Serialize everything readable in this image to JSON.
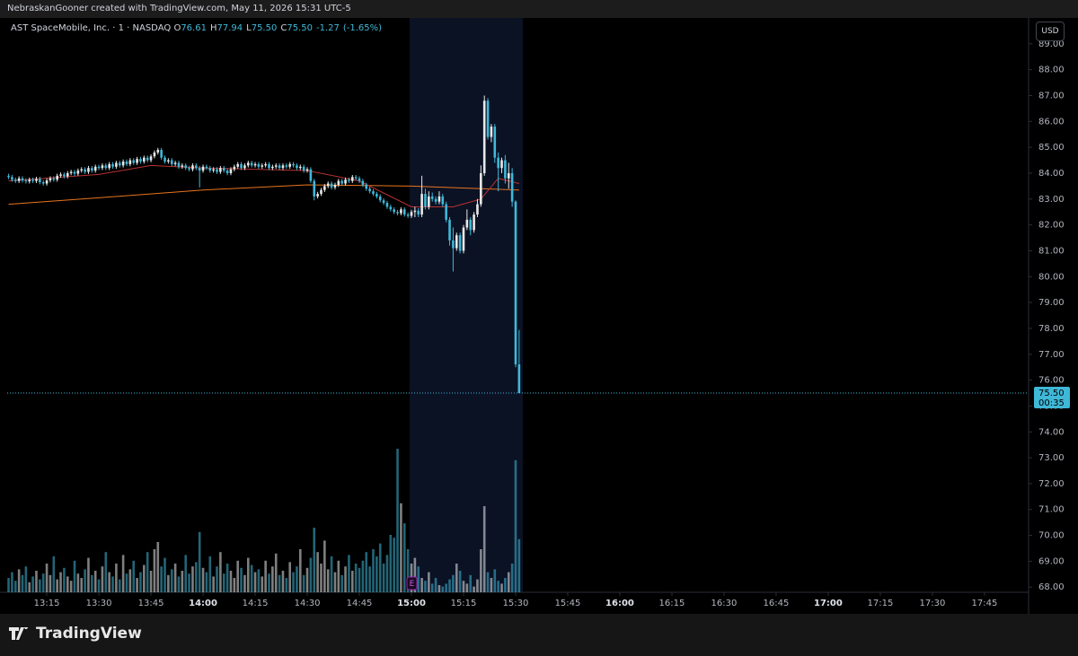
{
  "attribution": "NebraskanGooner created with TradingView.com, May 11, 2026 15:31 UTC-5",
  "logo": "TradingView",
  "currency": "USD",
  "chart_data": {
    "type": "candlestick",
    "title": "AST SpaceMobile, Inc. · 1 · NASDAQ",
    "ohlc_labels": [
      "O",
      "H",
      "L",
      "C"
    ],
    "legend_values": [
      76.61,
      77.94,
      75.5,
      75.5
    ],
    "legend_value_labels": [
      "76.61",
      "77.94",
      "75.50",
      "75.50"
    ],
    "change": -1.27,
    "change_percent": {
      "value": -1.65,
      "label": "(-1.65%)"
    },
    "last_price": {
      "value": 75.5,
      "label": "75.50"
    },
    "countdown": "00:35",
    "up_color": "#e8e8e8",
    "down_color": "#3fb8d8",
    "x": [
      784,
      785,
      786,
      787,
      788,
      789,
      790,
      791,
      792,
      793,
      794,
      795,
      796,
      797,
      798,
      799,
      800,
      801,
      802,
      803,
      804,
      805,
      806,
      807,
      808,
      809,
      810,
      811,
      812,
      813,
      814,
      815,
      816,
      817,
      818,
      819,
      820,
      821,
      822,
      823,
      824,
      825,
      826,
      827,
      828,
      829,
      830,
      831,
      832,
      833,
      834,
      835,
      836,
      837,
      838,
      839,
      840,
      841,
      842,
      843,
      844,
      845,
      846,
      847,
      848,
      849,
      850,
      851,
      852,
      853,
      854,
      855,
      856,
      857,
      858,
      859,
      860,
      861,
      862,
      863,
      864,
      865,
      866,
      867,
      868,
      869,
      870,
      871,
      872,
      873,
      874,
      875,
      876,
      877,
      878,
      879,
      880,
      881,
      882,
      883,
      884,
      885,
      886,
      887,
      888,
      889,
      890,
      891,
      892,
      893,
      894,
      895,
      896,
      897,
      898,
      899,
      900,
      901,
      902,
      903,
      904,
      905,
      906,
      907,
      908,
      909,
      910,
      911,
      912,
      913,
      914,
      915,
      916,
      917,
      918,
      919,
      920,
      921,
      922,
      923,
      924,
      925,
      926,
      927,
      928,
      929,
      930,
      931
    ],
    "open": [
      83.9,
      83.85,
      83.75,
      83.7,
      83.8,
      83.72,
      83.68,
      83.75,
      83.7,
      83.78,
      83.65,
      83.6,
      83.72,
      83.8,
      83.75,
      83.9,
      83.95,
      83.88,
      84.0,
      84.05,
      83.98,
      84.1,
      84.15,
      84.05,
      84.2,
      84.1,
      84.25,
      84.2,
      84.3,
      84.2,
      84.35,
      84.25,
      84.4,
      84.3,
      84.45,
      84.35,
      84.5,
      84.4,
      84.55,
      84.45,
      84.6,
      84.5,
      84.65,
      84.8,
      84.9,
      84.6,
      84.45,
      84.5,
      84.35,
      84.4,
      84.25,
      84.3,
      84.2,
      84.15,
      84.3,
      84.2,
      84.1,
      84.25,
      84.2,
      84.1,
      84.15,
      84.05,
      84.2,
      84.1,
      84.0,
      84.15,
      84.25,
      84.35,
      84.2,
      84.3,
      84.4,
      84.3,
      84.35,
      84.25,
      84.3,
      84.35,
      84.2,
      84.25,
      84.3,
      84.2,
      84.3,
      84.25,
      84.35,
      84.3,
      84.2,
      84.25,
      84.1,
      84.15,
      83.7,
      83.1,
      83.2,
      83.35,
      83.5,
      83.6,
      83.45,
      83.55,
      83.7,
      83.6,
      83.75,
      83.7,
      83.85,
      83.8,
      83.7,
      83.55,
      83.4,
      83.3,
      83.2,
      83.1,
      82.95,
      82.85,
      82.7,
      82.6,
      82.5,
      82.45,
      82.6,
      82.4,
      82.35,
      82.5,
      82.55,
      82.4,
      83.2,
      82.7,
      83.1,
      83.0,
      82.9,
      83.1,
      82.8,
      82.2,
      81.4,
      81.1,
      81.6,
      81.0,
      81.9,
      82.2,
      81.8,
      82.4,
      82.8,
      84.0,
      86.8,
      85.4,
      85.8,
      84.6,
      84.2,
      84.5,
      83.8,
      84.0,
      82.9,
      76.61
    ],
    "high": [
      83.98,
      83.93,
      83.83,
      83.88,
      83.88,
      83.8,
      83.83,
      83.83,
      83.86,
      83.86,
      83.73,
      83.8,
      83.88,
      83.88,
      83.98,
      84.03,
      84.03,
      84.08,
      84.13,
      84.13,
      84.18,
      84.23,
      84.23,
      84.28,
      84.28,
      84.33,
      84.33,
      84.38,
      84.38,
      84.43,
      84.43,
      84.48,
      84.48,
      84.53,
      84.53,
      84.58,
      84.58,
      84.63,
      84.63,
      84.68,
      84.68,
      84.73,
      84.88,
      84.98,
      84.98,
      84.68,
      84.58,
      84.58,
      84.48,
      84.48,
      84.38,
      84.38,
      84.28,
      84.38,
      84.38,
      84.28,
      84.33,
      84.33,
      84.28,
      84.23,
      84.23,
      84.28,
      84.28,
      84.18,
      84.23,
      84.33,
      84.43,
      84.43,
      84.38,
      84.48,
      84.48,
      84.43,
      84.43,
      84.38,
      84.43,
      84.43,
      84.33,
      84.38,
      84.38,
      84.38,
      84.38,
      84.43,
      84.43,
      84.38,
      84.33,
      84.33,
      84.23,
      84.23,
      83.78,
      83.28,
      83.43,
      83.58,
      83.68,
      83.68,
      83.63,
      83.78,
      83.78,
      83.83,
      83.83,
      83.93,
      83.93,
      83.88,
      83.78,
      83.63,
      83.48,
      83.38,
      83.28,
      83.18,
      83.03,
      82.93,
      82.78,
      82.68,
      82.58,
      82.68,
      82.68,
      82.48,
      82.58,
      82.7,
      82.65,
      83.9,
      83.4,
      83.3,
      83.25,
      83.1,
      83.3,
      83.2,
      82.9,
      82.3,
      81.9,
      81.7,
      81.7,
      82.0,
      82.6,
      82.3,
      82.5,
      83.0,
      84.3,
      87.0,
      86.9,
      85.9,
      85.9,
      84.8,
      84.6,
      84.7,
      84.4,
      84.2,
      82.95,
      77.94
    ],
    "low": [
      83.77,
      83.67,
      83.62,
      83.62,
      83.64,
      83.6,
      83.6,
      83.62,
      83.62,
      83.57,
      83.52,
      83.52,
      83.64,
      83.67,
      83.67,
      83.82,
      83.8,
      83.8,
      83.92,
      83.9,
      83.9,
      84.02,
      83.97,
      83.97,
      84.02,
      84.02,
      84.12,
      84.12,
      84.12,
      84.12,
      84.17,
      84.17,
      84.22,
      84.22,
      84.27,
      84.27,
      84.32,
      84.32,
      84.37,
      84.37,
      84.42,
      84.42,
      84.57,
      84.72,
      84.52,
      84.37,
      84.37,
      84.27,
      84.27,
      84.17,
      84.17,
      84.12,
      84.07,
      84.07,
      84.12,
      83.45,
      84.02,
      84.12,
      84.02,
      84.02,
      83.97,
      83.97,
      84.02,
      83.92,
      83.92,
      84.07,
      84.17,
      84.12,
      84.12,
      84.22,
      84.22,
      84.22,
      84.17,
      84.17,
      84.22,
      84.12,
      84.12,
      84.17,
      84.12,
      84.12,
      84.17,
      84.17,
      84.22,
      84.12,
      84.12,
      84.02,
      84.02,
      83.62,
      82.95,
      83.02,
      83.12,
      83.27,
      83.42,
      83.37,
      83.37,
      83.47,
      83.52,
      83.52,
      83.62,
      83.62,
      83.72,
      83.62,
      83.47,
      83.32,
      83.22,
      83.12,
      83.02,
      82.87,
      82.77,
      82.62,
      82.52,
      82.42,
      82.37,
      82.37,
      82.32,
      82.27,
      82.27,
      82.3,
      82.3,
      82.3,
      82.6,
      82.6,
      82.9,
      82.8,
      82.8,
      82.7,
      82.1,
      81.2,
      80.2,
      81.0,
      80.9,
      80.9,
      81.8,
      81.6,
      81.7,
      82.3,
      82.7,
      83.9,
      85.3,
      85.2,
      84.4,
      83.3,
      84.0,
      83.6,
      83.4,
      82.7,
      76.5,
      75.5
    ],
    "close": [
      83.85,
      83.75,
      83.7,
      83.8,
      83.72,
      83.68,
      83.75,
      83.7,
      83.78,
      83.65,
      83.6,
      83.72,
      83.8,
      83.75,
      83.9,
      83.95,
      83.88,
      84.0,
      84.05,
      83.98,
      84.1,
      84.15,
      84.05,
      84.2,
      84.1,
      84.25,
      84.2,
      84.3,
      84.2,
      84.35,
      84.25,
      84.4,
      84.3,
      84.45,
      84.35,
      84.5,
      84.4,
      84.55,
      84.45,
      84.6,
      84.5,
      84.65,
      84.8,
      84.9,
      84.6,
      84.45,
      84.5,
      84.35,
      84.4,
      84.25,
      84.3,
      84.2,
      84.15,
      84.3,
      84.2,
      84.1,
      84.25,
      84.2,
      84.1,
      84.15,
      84.05,
      84.2,
      84.1,
      84.0,
      84.15,
      84.25,
      84.35,
      84.2,
      84.3,
      84.4,
      84.3,
      84.35,
      84.25,
      84.3,
      84.35,
      84.2,
      84.25,
      84.3,
      84.2,
      84.3,
      84.25,
      84.35,
      84.3,
      84.2,
      84.25,
      84.1,
      84.15,
      83.7,
      83.1,
      83.2,
      83.35,
      83.5,
      83.6,
      83.45,
      83.55,
      83.7,
      83.6,
      83.75,
      83.7,
      83.85,
      83.8,
      83.7,
      83.55,
      83.4,
      83.3,
      83.2,
      83.1,
      82.95,
      82.85,
      82.7,
      82.6,
      82.5,
      82.45,
      82.6,
      82.4,
      82.35,
      82.5,
      82.55,
      82.4,
      83.2,
      82.7,
      83.1,
      83.0,
      82.9,
      83.1,
      82.8,
      82.2,
      81.4,
      81.1,
      81.6,
      81.0,
      81.9,
      82.2,
      81.8,
      82.4,
      82.8,
      84.0,
      86.8,
      85.4,
      85.8,
      84.6,
      84.2,
      84.5,
      83.8,
      84.0,
      82.9,
      76.61,
      75.5
    ],
    "volume": [
      10,
      14,
      8,
      16,
      12,
      18,
      7,
      11,
      15,
      9,
      13,
      20,
      12,
      25,
      9,
      14,
      17,
      11,
      8,
      22,
      13,
      10,
      16,
      24,
      12,
      15,
      9,
      18,
      28,
      14,
      11,
      20,
      9,
      26,
      13,
      16,
      22,
      10,
      14,
      19,
      28,
      15,
      30,
      35,
      18,
      24,
      12,
      16,
      20,
      11,
      15,
      26,
      13,
      18,
      21,
      42,
      17,
      14,
      25,
      11,
      18,
      28,
      13,
      20,
      15,
      10,
      22,
      17,
      12,
      24,
      19,
      14,
      16,
      11,
      22,
      13,
      18,
      27,
      12,
      15,
      10,
      21,
      14,
      18,
      30,
      12,
      17,
      24,
      45,
      28,
      20,
      36,
      16,
      25,
      14,
      22,
      12,
      18,
      26,
      15,
      20,
      17,
      22,
      28,
      18,
      30,
      25,
      34,
      20,
      26,
      40,
      38,
      100,
      62,
      48,
      30,
      20,
      24,
      18,
      10,
      8,
      14,
      6,
      10,
      5,
      4,
      6,
      9,
      12,
      20,
      15,
      8,
      6,
      12,
      4,
      9,
      30,
      60,
      14,
      10,
      16,
      8,
      6,
      10,
      14,
      20,
      92,
      37
    ],
    "y2lim": [
      0,
      400
    ],
    "lines": [
      {
        "color": "#e8741e",
        "x": [
          784,
          810,
          840,
          870,
          900,
          931
        ],
        "values": [
          82.8,
          83.05,
          83.35,
          83.55,
          83.5,
          83.35
        ]
      },
      {
        "color": "#b83232",
        "x": [
          784,
          810,
          825,
          840,
          870,
          885,
          900,
          912,
          920,
          925,
          931
        ],
        "values": [
          83.7,
          83.95,
          84.3,
          84.2,
          84.1,
          83.7,
          82.7,
          82.7,
          83.0,
          83.8,
          83.6
        ]
      }
    ],
    "events": [
      {
        "x": 900,
        "label": "E"
      }
    ],
    "xlim": [
      783.6,
      1077.7
    ],
    "xticks": [
      {
        "value": 795,
        "label": "13:15"
      },
      {
        "value": 810,
        "label": "13:30"
      },
      {
        "value": 825,
        "label": "13:45"
      },
      {
        "value": 840,
        "label": "14:00"
      },
      {
        "value": 855,
        "label": "14:15"
      },
      {
        "value": 870,
        "label": "14:30"
      },
      {
        "value": 885,
        "label": "14:45"
      },
      {
        "value": 900,
        "label": "15:00"
      },
      {
        "value": 915,
        "label": "15:15"
      },
      {
        "value": 930,
        "label": "15:30"
      },
      {
        "value": 945,
        "label": "15:45"
      },
      {
        "value": 960,
        "label": "16:00"
      },
      {
        "value": 975,
        "label": "16:15"
      },
      {
        "value": 990,
        "label": "16:30"
      },
      {
        "value": 1005,
        "label": "16:45"
      },
      {
        "value": 1020,
        "label": "17:00"
      },
      {
        "value": 1035,
        "label": "17:15"
      },
      {
        "value": 1050,
        "label": "17:30"
      },
      {
        "value": 1065,
        "label": "17:45"
      }
    ],
    "ylim": [
      67.8,
      90
    ],
    "yticks": [
      {
        "value": 68,
        "label": "68.00"
      },
      {
        "value": 69,
        "label": "69.00"
      },
      {
        "value": 70,
        "label": "70.00"
      },
      {
        "value": 71,
        "label": "71.00"
      },
      {
        "value": 72,
        "label": "72.00"
      },
      {
        "value": 73,
        "label": "73.00"
      },
      {
        "value": 74,
        "label": "74.00"
      },
      {
        "value": 75,
        "label": "75.00"
      },
      {
        "value": 76,
        "label": "76.00"
      },
      {
        "value": 77,
        "label": "77.00"
      },
      {
        "value": 78,
        "label": "78.00"
      },
      {
        "value": 79,
        "label": "79.00"
      },
      {
        "value": 80,
        "label": "80.00"
      },
      {
        "value": 81,
        "label": "81.00"
      },
      {
        "value": 82,
        "label": "82.00"
      },
      {
        "value": 83,
        "label": "83.00"
      },
      {
        "value": 84,
        "label": "84.00"
      },
      {
        "value": 85,
        "label": "85.00"
      },
      {
        "value": 86,
        "label": "86.00"
      },
      {
        "value": 87,
        "label": "87.00"
      },
      {
        "value": 88,
        "label": "88.00"
      },
      {
        "value": 89,
        "label": "89.00"
      }
    ],
    "grid": false
  }
}
